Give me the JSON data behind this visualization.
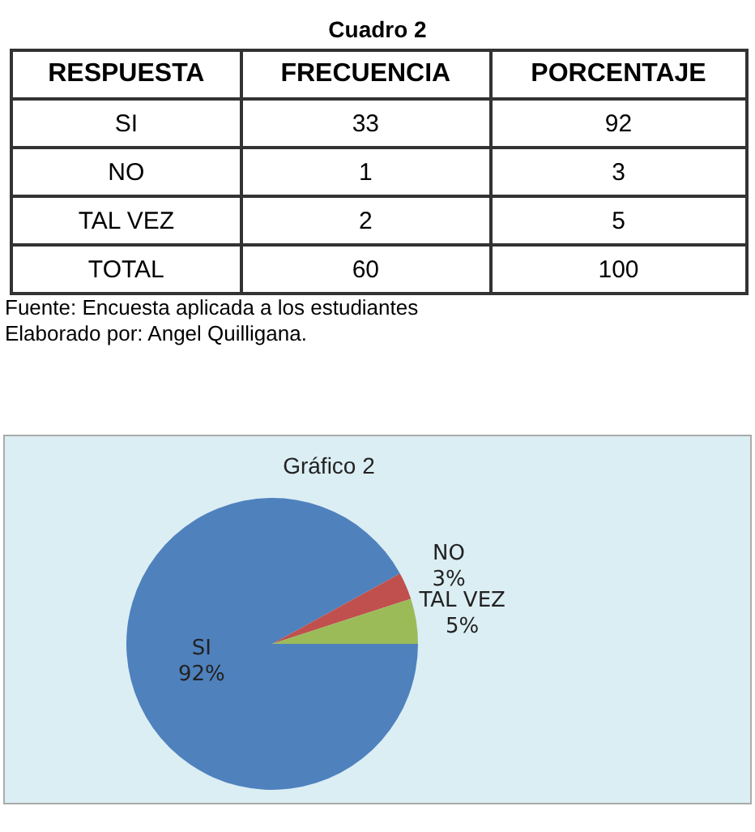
{
  "chart_data": [
    {
      "type": "other",
      "title": "Cuadro 2",
      "xlabel": "RESPUESTA",
      "categories": [
        "SI",
        "NO",
        "TAL VEZ",
        "TOTAL"
      ],
      "series": [
        {
          "name": "FRECUENCIA",
          "values": [
            33,
            1,
            2,
            60
          ]
        },
        {
          "name": "PORCENTAJE",
          "values": [
            92,
            3,
            5,
            100
          ]
        }
      ],
      "data_labels": true,
      "annotations": [
        "Fuente: Encuesta aplicada a  los estudiantes",
        "Elaborado por: Angel Quilligana."
      ]
    },
    {
      "type": "pie",
      "title": "Gráfico 2",
      "categories": [
        "SI",
        "NO",
        "TAL VEZ"
      ],
      "values": [
        92,
        3,
        5
      ],
      "colors": [
        "#4f81bd",
        "#c0504d",
        "#9bbb59"
      ],
      "value_labels": [
        "92%",
        "3%",
        "5%"
      ],
      "legend": false
    }
  ]
}
